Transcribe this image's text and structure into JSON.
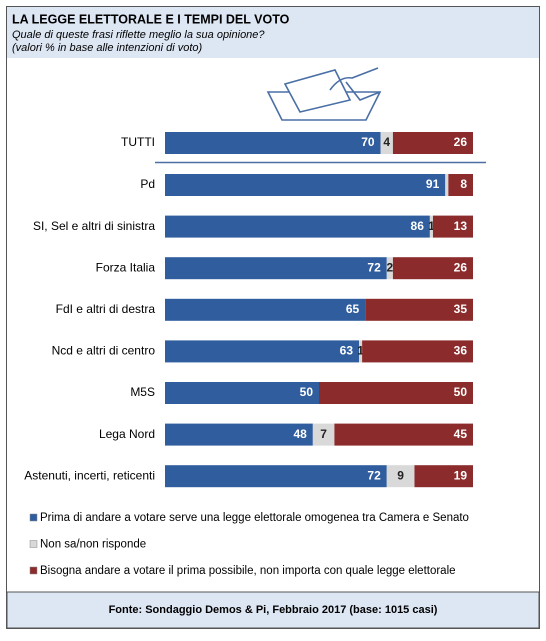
{
  "chart_data": {
    "type": "stacked-bar-horizontal",
    "title": "LA LEGGE ELETTORALE E I TEMPI DEL VOTO",
    "subtitle": [
      "Quale di queste frasi riflette meglio la sua opinione?",
      "(valori % in base alle intenzioni di voto)"
    ],
    "categories": [
      "TUTTI",
      "Pd",
      "SI, Sel e altri di sinistra",
      "Forza Italia",
      "FdI e altri di destra",
      "Ncd e altri di centro",
      "M5S",
      "Lega Nord",
      "Astenuti, incerti, reticenti"
    ],
    "xlim": [
      0,
      100
    ],
    "series": [
      {
        "name": "Prima di andare a votare serve una legge elettorale omogenea tra Camera e Senato",
        "color": "#2f5d9e",
        "values": [
          70,
          91,
          86,
          72,
          65,
          63,
          50,
          48,
          72
        ]
      },
      {
        "name": "Non sa/non risponde",
        "color": "#d9d9d9",
        "values": [
          4,
          1,
          1,
          2,
          0,
          1,
          0,
          7,
          9
        ],
        "value_labels": [
          "4",
          null,
          "1",
          "2",
          null,
          "1",
          null,
          "7",
          "9"
        ]
      },
      {
        "name": "Bisogna andare a votare il prima possibile, non importa con quale legge elettorale",
        "color": "#8c2b2b",
        "values": [
          26,
          8,
          13,
          26,
          35,
          36,
          50,
          45,
          19
        ]
      }
    ],
    "footer": "Fonte: Sondaggio Demos & Pi, Febbraio 2017 (base: 1015 casi)"
  }
}
